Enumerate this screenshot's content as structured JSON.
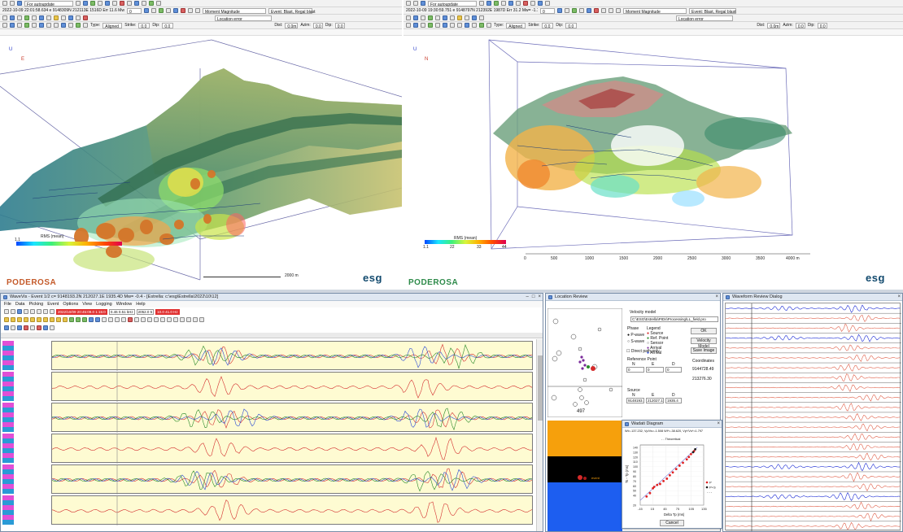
{
  "viewer_left": {
    "autoupdate": "For autoupdate",
    "status": "2022-10-09 22:01:58.634 e 9148309N 212113E 1516D Err 11.6 Mw= -1.3 Ev=",
    "status_count": "0",
    "magnitude_select": "Moment Magnitude",
    "event_select": "Event: Blast, Regal blast",
    "location_error": "Location error",
    "type_label": "Type:",
    "type_value": "Aligned",
    "strike_label": "Strike:",
    "strike_value": "0.0",
    "dip_label": "Dip:",
    "dip_value": "0.0",
    "dist_label": "Dist:",
    "dist_value": "0.0m",
    "azim_label": "Azim:",
    "azim_value": "0.0",
    "dip2_label": "Dip:",
    "dip2_value": "0.0",
    "axis_u": "U",
    "axis_e": "E",
    "colorbar_title": "RMS (mean)",
    "colorbar_min": "1.1",
    "scale_label": "2000 m",
    "logo_brand": "PODEROSA",
    "logo_esg": "esg"
  },
  "viewer_right": {
    "autoupdate": "For autoupdate",
    "status": "2022-10-09 19:30:59.751 e 9148797N 212392E 1987D Err 31.2 Mw= -1.1 Ev=",
    "status_count": "0",
    "magnitude_select": "Moment Magnitude",
    "event_select": "Event: Blast, Regal blast",
    "location_error": "Location error",
    "type_label": "Type:",
    "type_value": "Aligned",
    "strike_label": "Strike:",
    "strike_value": "0.0",
    "dip_label": "Dip:",
    "dip_value": "0.0",
    "dist_label": "Dist:",
    "dist_value": "0.0m",
    "azim_label": "Azim:",
    "azim_value": "0.0",
    "dip2_label": "Dip:",
    "dip2_value": "0.0",
    "axis_u": "U",
    "axis_n": "N",
    "colorbar_title": "RMS (mean)",
    "colorbar_ticks": [
      "1.1",
      "22",
      "33",
      "44"
    ],
    "scale_ticks": [
      "0",
      "500",
      "1000",
      "1500",
      "2000",
      "2500",
      "3000",
      "3500",
      "4000 m"
    ],
    "logo_brand": "PODEROSA",
    "logo_esg": "esg"
  },
  "wavevis": {
    "title": "WaveVis - Event 1/2 c= 9148193.2N 212027.1E 1935.4D Mw= -0.4 - [Estrella: c:\\esg\\Estrella\\2022\\10\\12]",
    "menu": [
      "File",
      "Data",
      "Picking",
      "Event",
      "Options",
      "View",
      "Logging",
      "Window",
      "Help"
    ],
    "red_field": "2022/10/09 20:45:09.0 1:15:0",
    "field2": "0.46 0.51 kHz",
    "field3": "2052.0 5",
    "field4": "10.0 41.0 Hz",
    "trace_count": 6
  },
  "location_review": {
    "title": "Location Review",
    "velocity_model_label": "Velocity model",
    "velocity_model_path": "C:\\ESG\\Estrella\\PIDs\\Processing\\LL_field.pro",
    "phase_label": "Phase",
    "phase_options": [
      "P-wave",
      "S-wave"
    ],
    "legend_label": "Legend",
    "legend_items": [
      "Source",
      "Ref. Point",
      "Sensor",
      "Arrival",
      "Arrival"
    ],
    "direct_path": "Direct path only",
    "reference_point_label": "Reference Point",
    "ref_cols": [
      "N",
      "E",
      "D"
    ],
    "ref_values": [
      "0",
      "0",
      "0"
    ],
    "source_label": "Source",
    "source_values": [
      "9148193.",
      "212027.1",
      "1935.4"
    ],
    "ok": "OK",
    "velocity_model_btn": "Velocity Model",
    "save_image": "Save Image",
    "coordinates_label": "Coordinates",
    "coord_n": "9144728.49",
    "coord_e": "213276.30",
    "map_label": "497",
    "section_label": "event"
  },
  "wadati": {
    "title": "Wadati Diagram",
    "equation": "Wt=-137.232, Vp/Vs=-1.508 Wl*=-38.620, Vp*/Vs*=1.797",
    "subtitle": "- - Theoretical",
    "ylabel": "Ts - Tp (ms)",
    "xlabel": "Delta Tp (ms)",
    "legend": [
      "P",
      "P+S",
      "- - -"
    ],
    "cancel": "Cancel"
  },
  "waveform_review": {
    "title": "Waveform Review Dialog",
    "trace_count": 23
  },
  "chart_data": {
    "type": "scatter",
    "title": "Wt=-137.232, Vp/Vs=-1.508 Wl*=-38.620, Vp*/Vs*=1.797",
    "xlabel": "Delta Tp (ms)",
    "ylabel": "Ts - Tp (ms)",
    "xlim": [
      -15,
      135
    ],
    "ylim": [
      20,
      145
    ],
    "xticks": [
      "-15",
      "15",
      "45",
      "75",
      "105",
      "135"
    ],
    "yticks": [
      "20",
      "40",
      "50",
      "60",
      "70",
      "80",
      "90",
      "100",
      "110",
      "120",
      "130",
      "140"
    ],
    "series": [
      {
        "name": "P",
        "color": "#e02020",
        "points": [
          [
            0,
            38
          ],
          [
            8,
            45
          ],
          [
            15,
            55
          ],
          [
            18,
            58
          ],
          [
            25,
            62
          ],
          [
            32,
            64
          ],
          [
            40,
            70
          ],
          [
            48,
            75
          ],
          [
            55,
            82
          ],
          [
            62,
            88
          ],
          [
            70,
            95
          ],
          [
            78,
            102
          ],
          [
            86,
            108
          ],
          [
            95,
            115
          ],
          [
            100,
            120
          ],
          [
            105,
            126
          ],
          [
            112,
            132
          ]
        ]
      },
      {
        "name": "P+S",
        "color": "#202020",
        "points": [
          [
            110,
            130
          ],
          [
            115,
            136
          ]
        ]
      }
    ]
  }
}
